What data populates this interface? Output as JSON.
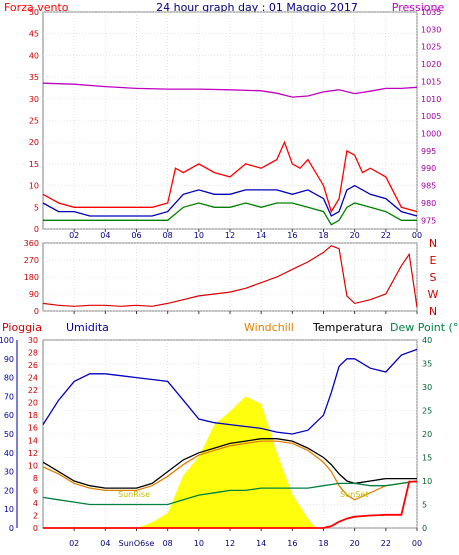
{
  "header": {
    "left_label": "Forza vento",
    "title": "24 hour graph day : 01 Maggio 2017",
    "right_label": "Pressione"
  },
  "colors": {
    "wind_gust": "#ff0000",
    "wind_avg": "#0000c0",
    "wind_min": "#008000",
    "pressure": "#c000c0",
    "direction": "#e00000",
    "rain": "#ff0000",
    "humidity": "#0000c0",
    "windchill": "#e08000",
    "temperature": "#000000",
    "dewpoint": "#008040",
    "solar": "#ffff00"
  },
  "chart_data": [
    {
      "type": "line",
      "title": "24 hour graph day : 01 Maggio 2017",
      "xlabel": "",
      "x_ticks": [
        "02",
        "04",
        "06",
        "08",
        "10",
        "12",
        "14",
        "16",
        "18",
        "20",
        "22",
        "00"
      ],
      "xlim": [
        0,
        24
      ],
      "left_axis": {
        "label": "Forza vento",
        "ticks": [
          0,
          5,
          10,
          15,
          20,
          25,
          30,
          35,
          40,
          45,
          50
        ],
        "ylim": [
          0,
          50
        ]
      },
      "right_axis": {
        "label": "Pressione",
        "ticks": [
          975,
          980,
          985,
          990,
          995,
          1000,
          1005,
          1010,
          1015,
          1020,
          1025,
          1030,
          1035
        ],
        "ylim": [
          972.5,
          1035
        ]
      },
      "series": [
        {
          "name": "Forza vento",
          "color": "#ff0000",
          "x": [
            0,
            1,
            2,
            3,
            4,
            5,
            6,
            7,
            8,
            8.5,
            9,
            10,
            11,
            12,
            13,
            14,
            15,
            15.5,
            16,
            16.5,
            17,
            18,
            18.5,
            19,
            19.5,
            20,
            20.5,
            21,
            22,
            23,
            24
          ],
          "y": [
            8,
            6,
            5,
            5,
            5,
            5,
            5,
            5,
            6,
            14,
            13,
            15,
            13,
            12,
            15,
            14,
            16,
            20,
            15,
            14,
            16,
            10,
            4,
            7,
            18,
            17,
            13,
            14,
            12,
            5,
            4
          ]
        },
        {
          "name": "",
          "color": "#0000c0",
          "x": [
            0,
            1,
            2,
            3,
            4,
            5,
            6,
            7,
            8,
            9,
            10,
            11,
            12,
            13,
            14,
            15,
            16,
            17,
            18,
            18.5,
            19,
            19.5,
            20,
            21,
            22,
            23,
            24
          ],
          "y": [
            6,
            4,
            4,
            3,
            3,
            3,
            3,
            3,
            4,
            8,
            9,
            8,
            8,
            9,
            9,
            9,
            8,
            9,
            7,
            3,
            4,
            9,
            10,
            8,
            7,
            4,
            3
          ]
        },
        {
          "name": "",
          "color": "#008000",
          "x": [
            0,
            1,
            2,
            3,
            4,
            5,
            6,
            7,
            8,
            9,
            10,
            11,
            12,
            13,
            14,
            15,
            16,
            17,
            18,
            18.5,
            19,
            19.5,
            20,
            21,
            22,
            23,
            24
          ],
          "y": [
            2,
            2,
            2,
            2,
            2,
            2,
            2,
            2,
            2,
            5,
            6,
            5,
            5,
            6,
            5,
            6,
            6,
            5,
            4,
            1,
            2,
            5,
            6,
            5,
            4,
            2,
            2
          ]
        },
        {
          "name": "Pressione",
          "color": "#c000c0",
          "axis": "right",
          "x": [
            0,
            2,
            4,
            6,
            8,
            10,
            12,
            14,
            15,
            16,
            17,
            18,
            19,
            20,
            21,
            22,
            23,
            24
          ],
          "y": [
            1014.5,
            1014.2,
            1013.5,
            1013,
            1012.8,
            1012.8,
            1012.6,
            1012.3,
            1011.6,
            1010.5,
            1010.8,
            1012,
            1012.6,
            1011.5,
            1012.2,
            1013,
            1013,
            1013.3
          ]
        }
      ]
    },
    {
      "type": "line",
      "title": "",
      "x_ticks": [
        "02",
        "04",
        "06",
        "08",
        "10",
        "12",
        "14",
        "16",
        "18",
        "20",
        "22",
        "00"
      ],
      "xlim": [
        0,
        24
      ],
      "left_axis": {
        "ticks": [
          0,
          90,
          180,
          270,
          360
        ],
        "ylim": [
          0,
          360
        ]
      },
      "right_axis": {
        "ticks": [
          "N",
          "W",
          "S",
          "E",
          "N"
        ]
      },
      "series": [
        {
          "name": "",
          "color": "#e00000",
          "x": [
            0,
            1,
            2,
            3,
            4,
            5,
            6,
            7,
            8,
            9,
            10,
            11,
            12,
            13,
            14,
            15,
            16,
            17,
            18,
            18.5,
            19,
            19.5,
            20,
            21,
            22,
            23,
            23.5,
            24
          ],
          "y": [
            40,
            30,
            25,
            30,
            30,
            25,
            30,
            25,
            40,
            60,
            80,
            90,
            100,
            120,
            150,
            180,
            220,
            260,
            310,
            345,
            330,
            80,
            40,
            60,
            90,
            240,
            300,
            20
          ]
        }
      ]
    },
    {
      "type": "line",
      "title": "",
      "x_ticks": [
        "02",
        "04",
        "SunO6se",
        "08",
        "10",
        "12",
        "14",
        "16",
        "18",
        "20",
        "22",
        "00"
      ],
      "xlim": [
        0,
        24
      ],
      "labels": {
        "rain": "Pioggia",
        "humidity": "Umidita",
        "windchill": "Windchill",
        "temperature": "Temperatura",
        "dewpoint": "Dew Point (°C"
      },
      "axis_humidity": {
        "ticks": [
          0,
          10,
          20,
          30,
          40,
          50,
          60,
          70,
          80,
          90,
          100
        ],
        "ylim": [
          0,
          100
        ]
      },
      "axis_rain": {
        "ticks": [
          0,
          2,
          4,
          6,
          8,
          10,
          12,
          14,
          16,
          18,
          20,
          22,
          24,
          26,
          28,
          30
        ],
        "ylim": [
          0,
          30
        ]
      },
      "axis_temp": {
        "ticks": [
          0,
          5,
          10,
          15,
          20,
          25,
          30,
          35,
          40
        ],
        "ylim": [
          0,
          40
        ]
      },
      "annotations": [
        "SunRise",
        "SunSet"
      ],
      "series": [
        {
          "name": "Umidita",
          "color": "#0000c0",
          "axis": "humidity",
          "x": [
            0,
            1,
            2,
            3,
            4,
            5,
            6,
            7,
            8,
            9,
            10,
            11,
            12,
            13,
            14,
            15,
            16,
            17,
            18,
            18.5,
            19,
            19.5,
            20,
            21,
            22,
            23,
            24
          ],
          "y": [
            55,
            68,
            78,
            82,
            82,
            81,
            80,
            79,
            78,
            68,
            58,
            56,
            55,
            54,
            53,
            51,
            50,
            52,
            60,
            72,
            86,
            90,
            90,
            85,
            83,
            92,
            95
          ]
        },
        {
          "name": "Windchill",
          "color": "#e08000",
          "axis": "temp",
          "x": [
            0,
            1,
            2,
            3,
            4,
            5,
            6,
            7,
            8,
            9,
            10,
            11,
            12,
            13,
            14,
            15,
            16,
            17,
            18,
            18.5,
            19,
            19.5,
            20,
            21,
            22,
            23,
            24
          ],
          "y": [
            13,
            11.5,
            9.5,
            8.5,
            8,
            8,
            8,
            9,
            11,
            13.5,
            15.5,
            16.5,
            17.5,
            18,
            18.5,
            18.5,
            18,
            16.5,
            14,
            12,
            9,
            7,
            6,
            7.5,
            9,
            9.5,
            10
          ]
        },
        {
          "name": "Temperatura",
          "color": "#000000",
          "axis": "temp",
          "x": [
            0,
            1,
            2,
            3,
            4,
            5,
            6,
            7,
            8,
            9,
            10,
            11,
            12,
            13,
            14,
            15,
            16,
            17,
            18,
            18.5,
            19,
            19.5,
            20,
            21,
            22,
            23,
            24
          ],
          "y": [
            14,
            12,
            10,
            9,
            8.5,
            8.5,
            8.5,
            9.5,
            12,
            14.5,
            16,
            17,
            18,
            18.5,
            19,
            19,
            18.5,
            17,
            15,
            13.5,
            11.5,
            10,
            9.5,
            10,
            10.5,
            10.5,
            10.5
          ]
        },
        {
          "name": "Dew Point",
          "color": "#008040",
          "axis": "temp",
          "x": [
            0,
            1,
            2,
            3,
            4,
            5,
            6,
            7,
            8,
            9,
            10,
            11,
            12,
            13,
            14,
            15,
            16,
            17,
            18,
            19,
            20,
            21,
            22,
            23,
            24
          ],
          "y": [
            6.5,
            6,
            5.5,
            5,
            5,
            5,
            5,
            5,
            5,
            6,
            7,
            7.5,
            8,
            8,
            8.5,
            8.5,
            8.5,
            8.5,
            9,
            9.5,
            9.5,
            9,
            9,
            9.5,
            10
          ]
        },
        {
          "name": "Pioggia",
          "color": "#ff0000",
          "axis": "rain",
          "x": [
            0,
            16,
            17,
            18,
            18.5,
            19,
            19.5,
            20,
            21,
            22,
            23,
            23.5,
            24
          ],
          "y": [
            0,
            0,
            0,
            0,
            0.3,
            1,
            1.5,
            1.8,
            2.0,
            2.1,
            2.1,
            7.4,
            7.4
          ]
        },
        {
          "name": "",
          "color": "#ffff00",
          "type": "area",
          "axis": "humidity",
          "x": [
            6,
            7,
            8,
            9,
            10,
            11,
            12,
            13,
            14,
            15,
            16,
            17,
            17.5
          ],
          "y": [
            0,
            3,
            8,
            28,
            38,
            55,
            62,
            70,
            66,
            40,
            18,
            5,
            0
          ]
        }
      ]
    }
  ]
}
